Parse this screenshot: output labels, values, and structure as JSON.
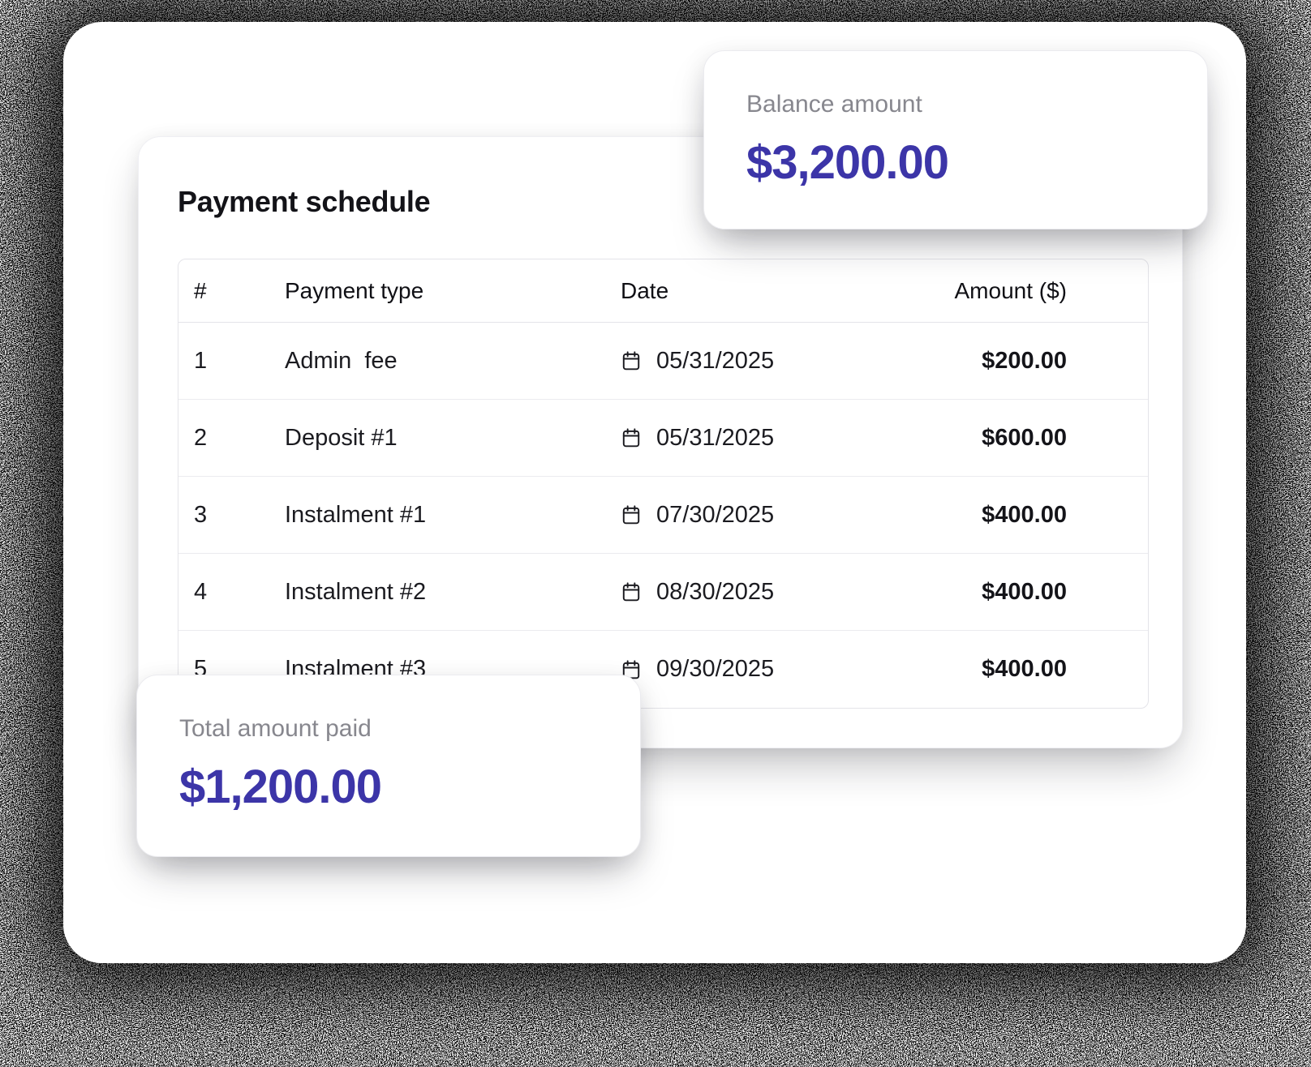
{
  "schedule": {
    "title": "Payment schedule",
    "columns": [
      "#",
      "Payment type",
      "Date",
      "Amount ($)"
    ],
    "rows": [
      {
        "num": "1",
        "type": "Admin  fee",
        "date": "05/31/2025",
        "amount": "$200.00"
      },
      {
        "num": "2",
        "type": "Deposit #1",
        "date": "05/31/2025",
        "amount": "$600.00"
      },
      {
        "num": "3",
        "type": "Instalment #1",
        "date": "07/30/2025",
        "amount": "$400.00"
      },
      {
        "num": "4",
        "type": "Instalment #2",
        "date": "08/30/2025",
        "amount": "$400.00"
      },
      {
        "num": "5",
        "type": "Instalment #3",
        "date": "09/30/2025",
        "amount": "$400.00"
      }
    ]
  },
  "stats": {
    "balance": {
      "label": "Balance amount",
      "value": "$3,200.00"
    },
    "total_paid": {
      "label": "Total amount paid",
      "value": "$1,200.00"
    }
  },
  "icons": {
    "date_icon": "calendar-icon"
  },
  "colors": {
    "accent": "#3c35a8",
    "muted_label": "#87878e",
    "text": "#1b1b20",
    "border": "#e4e4e9"
  }
}
